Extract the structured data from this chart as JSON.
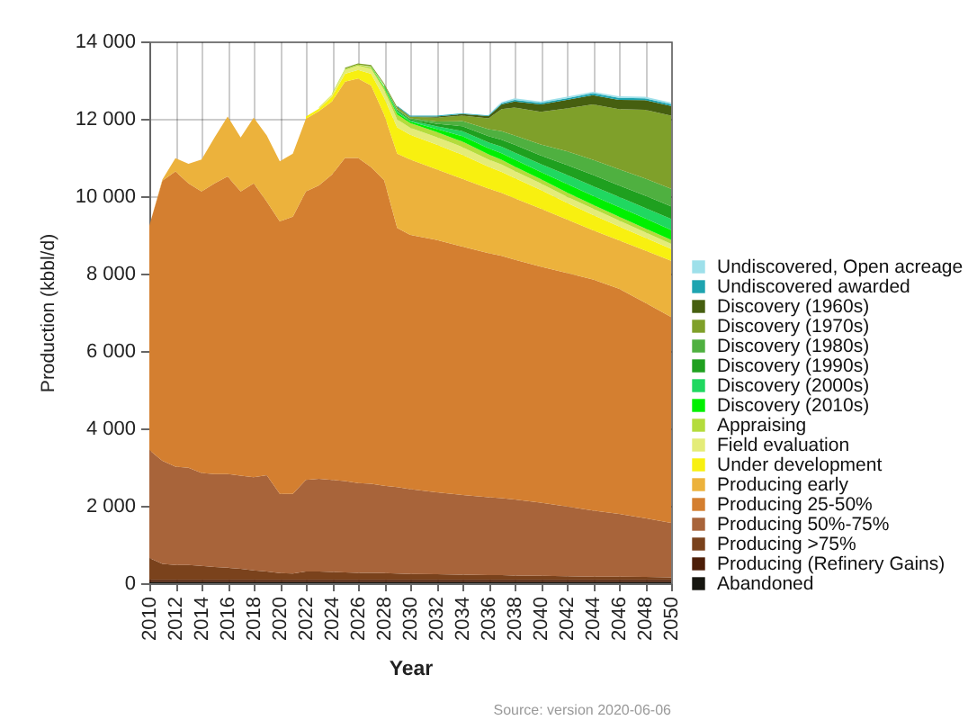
{
  "chart_data": {
    "type": "area",
    "stacked": true,
    "xlabel": "Year",
    "ylabel": "Production (kbbl/d)",
    "annotations": [
      "Source: version 2020-06-06"
    ],
    "x": [
      2010,
      2011,
      2012,
      2013,
      2014,
      2015,
      2016,
      2017,
      2018,
      2019,
      2020,
      2021,
      2022,
      2023,
      2024,
      2025,
      2026,
      2027,
      2028,
      2029,
      2030,
      2032,
      2034,
      2036,
      2037,
      2038,
      2040,
      2042,
      2044,
      2046,
      2048,
      2050
    ],
    "xlim": [
      2010,
      2050
    ],
    "xticks": [
      2010,
      2012,
      2014,
      2016,
      2018,
      2020,
      2022,
      2024,
      2026,
      2028,
      2030,
      2032,
      2034,
      2036,
      2038,
      2040,
      2042,
      2044,
      2046,
      2048,
      2050
    ],
    "ylim": [
      0,
      14000
    ],
    "yticks": [
      0,
      {
        "value": 2000,
        "label": "2 000"
      },
      {
        "value": 4000,
        "label": "4 000"
      },
      {
        "value": 6000,
        "label": "6 000"
      },
      {
        "value": 8000,
        "label": "8 000"
      },
      {
        "value": 10000,
        "label": "10 000"
      },
      {
        "value": 12000,
        "label": "12 000"
      },
      {
        "value": 14000,
        "label": "14 000"
      }
    ],
    "grid": true,
    "legend": "right",
    "series": [
      {
        "name": "Abandoned",
        "color": "#161610",
        "values": [
          30,
          30,
          30,
          30,
          30,
          30,
          30,
          30,
          30,
          30,
          30,
          30,
          30,
          30,
          30,
          30,
          30,
          30,
          30,
          30,
          30,
          30,
          30,
          30,
          30,
          30,
          30,
          30,
          30,
          30,
          30,
          30
        ]
      },
      {
        "name": "Producing (Refinery Gains)",
        "color": "#4c1e08",
        "values": [
          60,
          60,
          60,
          60,
          60,
          60,
          60,
          60,
          60,
          60,
          60,
          60,
          60,
          60,
          60,
          60,
          60,
          60,
          60,
          60,
          60,
          60,
          60,
          60,
          60,
          60,
          60,
          60,
          60,
          60,
          60,
          60
        ]
      },
      {
        "name": "Producing >75%",
        "color": "#7a421c",
        "values": [
          560,
          410,
          380,
          380,
          360,
          330,
          310,
          280,
          240,
          210,
          170,
          160,
          210,
          210,
          200,
          190,
          180,
          180,
          170,
          160,
          150,
          140,
          130,
          120,
          120,
          110,
          100,
          90,
          80,
          80,
          70,
          60
        ]
      },
      {
        "name": "Producing 50%-75%",
        "color": "#a8643a",
        "values": [
          2790,
          2660,
          2540,
          2510,
          2400,
          2400,
          2420,
          2410,
          2410,
          2490,
          2050,
          2060,
          2370,
          2400,
          2380,
          2360,
          2320,
          2300,
          2260,
          2230,
          2190,
          2120,
          2060,
          2010,
          1990,
          1960,
          1890,
          1800,
          1710,
          1620,
          1520,
          1410
        ]
      },
      {
        "name": "Producing 25-50%",
        "color": "#d47f30",
        "values": [
          5800,
          7240,
          7630,
          7350,
          7270,
          7510,
          7690,
          7340,
          7590,
          7070,
          7040,
          7160,
          7450,
          7580,
          7890,
          8350,
          8400,
          8180,
          7890,
          6700,
          6570,
          6520,
          6420,
          6310,
          6260,
          6200,
          6100,
          6040,
          5970,
          5820,
          5570,
          5320
        ]
      },
      {
        "name": "Producing early",
        "color": "#ecb23c",
        "values": [
          0,
          30,
          340,
          510,
          830,
          1190,
          1550,
          1400,
          1700,
          1710,
          1550,
          1630,
          1880,
          1920,
          1890,
          1970,
          2050,
          2110,
          1700,
          1920,
          1950,
          1830,
          1750,
          1670,
          1630,
          1590,
          1500,
          1380,
          1270,
          1250,
          1350,
          1450
        ]
      },
      {
        "name": "Under development",
        "color": "#f8f010",
        "values": [
          null,
          null,
          null,
          null,
          null,
          null,
          null,
          null,
          null,
          null,
          null,
          null,
          60,
          60,
          120,
          200,
          220,
          300,
          430,
          680,
          640,
          640,
          620,
          560,
          540,
          520,
          480,
          430,
          400,
          360,
          330,
          310
        ]
      },
      {
        "name": "Field evaluation",
        "color": "#e4ec78",
        "values": [
          null,
          null,
          null,
          null,
          null,
          null,
          null,
          null,
          null,
          null,
          null,
          null,
          null,
          40,
          60,
          100,
          110,
          130,
          200,
          200,
          180,
          190,
          200,
          190,
          190,
          180,
          170,
          160,
          160,
          150,
          140,
          130
        ]
      },
      {
        "name": "Appraising",
        "color": "#b4dc3c",
        "values": [
          null,
          null,
          null,
          null,
          null,
          null,
          null,
          null,
          null,
          null,
          null,
          null,
          null,
          null,
          20,
          30,
          30,
          40,
          60,
          130,
          120,
          130,
          140,
          130,
          120,
          120,
          110,
          110,
          100,
          100,
          100,
          100
        ]
      },
      {
        "name": "Discovery (2010s)",
        "color": "#00f000",
        "values": [
          null,
          null,
          null,
          null,
          null,
          null,
          null,
          null,
          null,
          null,
          null,
          null,
          null,
          null,
          null,
          null,
          null,
          20,
          30,
          50,
          40,
          80,
          140,
          160,
          170,
          180,
          190,
          220,
          230,
          250,
          260,
          260
        ]
      },
      {
        "name": "Discovery (2000s)",
        "color": "#20d860",
        "values": [
          null,
          null,
          null,
          null,
          null,
          null,
          null,
          null,
          null,
          null,
          null,
          null,
          null,
          null,
          null,
          null,
          null,
          null,
          20,
          40,
          30,
          70,
          130,
          150,
          170,
          180,
          200,
          230,
          250,
          260,
          270,
          280
        ]
      },
      {
        "name": "Discovery (1990s)",
        "color": "#1fa01f",
        "values": [
          null,
          null,
          null,
          null,
          null,
          null,
          null,
          null,
          null,
          null,
          null,
          null,
          null,
          null,
          null,
          null,
          null,
          null,
          20,
          30,
          30,
          60,
          130,
          160,
          180,
          200,
          220,
          260,
          290,
          300,
          320,
          330
        ]
      },
      {
        "name": "Discovery (1980s)",
        "color": "#4fb040",
        "values": [
          null,
          null,
          null,
          null,
          null,
          null,
          null,
          null,
          null,
          null,
          null,
          null,
          null,
          null,
          null,
          null,
          null,
          null,
          null,
          20,
          20,
          60,
          130,
          180,
          220,
          240,
          290,
          350,
          390,
          420,
          440,
          450
        ]
      },
      {
        "name": "Discovery (1970s)",
        "color": "#7fa02a",
        "values": [
          null,
          null,
          null,
          null,
          null,
          null,
          null,
          null,
          null,
          null,
          null,
          null,
          null,
          null,
          null,
          30,
          30,
          40,
          40,
          50,
          40,
          100,
          140,
          280,
          570,
          720,
          840,
          1110,
          1430,
          1550,
          1770,
          1890
        ]
      },
      {
        "name": "Discovery (1960s)",
        "color": "#465f10",
        "values": [
          null,
          null,
          null,
          null,
          null,
          null,
          null,
          null,
          null,
          null,
          null,
          null,
          null,
          null,
          null,
          null,
          null,
          null,
          null,
          20,
          10,
          30,
          40,
          60,
          120,
          160,
          190,
          220,
          240,
          240,
          250,
          250
        ]
      },
      {
        "name": "Undiscovered awarded",
        "color": "#1ea4b0",
        "values": [
          null,
          null,
          null,
          null,
          null,
          null,
          null,
          null,
          null,
          null,
          null,
          null,
          null,
          null,
          null,
          null,
          null,
          null,
          null,
          20,
          20,
          20,
          20,
          20,
          30,
          40,
          40,
          40,
          50,
          50,
          50,
          50
        ]
      },
      {
        "name": "Undiscovered, Open acreage",
        "color": "#9ee0ea",
        "values": [
          null,
          null,
          null,
          null,
          null,
          null,
          null,
          null,
          null,
          null,
          null,
          null,
          null,
          null,
          null,
          null,
          null,
          null,
          null,
          null,
          null,
          null,
          null,
          20,
          30,
          40,
          40,
          40,
          40,
          40,
          40,
          40
        ]
      }
    ]
  }
}
